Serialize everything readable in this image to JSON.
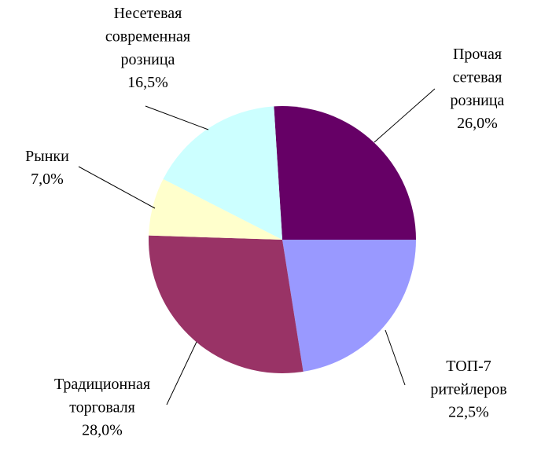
{
  "chart_data": {
    "type": "pie",
    "categories": [
      "Прочая\nсетевая\nрозница",
      "ТОП-7\nритейлеров",
      "Традиционная\nторговаля",
      "Рынки",
      "Несетевая\nсовременная\nрозница"
    ],
    "values": [
      26.0,
      22.5,
      28.0,
      7.0,
      16.5
    ],
    "value_labels": [
      "26,0%",
      "22,5%",
      "28,0%",
      "7,0%",
      "16,5%"
    ],
    "colors": [
      "#660066",
      "#9999ff",
      "#993366",
      "#ffffcc",
      "#ccffff"
    ]
  }
}
